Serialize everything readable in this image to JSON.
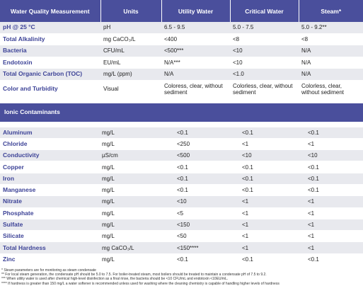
{
  "header": {
    "col0": "Water Quality Measurement",
    "col1": "Units",
    "col2": "Utility Water",
    "col3": "Critical Water",
    "col4": "Steam*"
  },
  "rows": [
    {
      "name": "pH @ 25 °C",
      "unit": "pH",
      "utility": "6.5 - 9.5",
      "critical": "5.0 - 7.5",
      "steam": "5.0 - 9.2**"
    },
    {
      "name": "Total Alkalinity",
      "unit": "mg CaCO₃/L",
      "utility": "<400",
      "critical": "<8",
      "steam": "<8"
    },
    {
      "name": "Bacteria",
      "unit": "CFU/mL",
      "utility": "<500***",
      "critical": "<10",
      "steam": "N/A"
    },
    {
      "name": "Endotoxin",
      "unit": "EU/mL",
      "utility": "N/A***",
      "critical": "<10",
      "steam": "N/A"
    },
    {
      "name": "Total Organic Carbon (TOC)",
      "unit": "mg/L (ppm)",
      "utility": "N/A",
      "critical": "<1.0",
      "steam": "N/A"
    },
    {
      "name": "Color and Turbidity",
      "unit": "Visual",
      "utility": "Coloress, clear, without sediment",
      "critical": "Colorless, clear, without sediment",
      "steam": "Colorless, clear, without sediment"
    }
  ],
  "section_title": "Ionic Contaminants",
  "ionic": [
    {
      "name": "Aluminum",
      "unit": "mg/L",
      "utility": "<0.1",
      "critical": "<0.1",
      "steam": "<0.1"
    },
    {
      "name": "Chloride",
      "unit": "mg/L",
      "utility": "<250",
      "critical": "<1",
      "steam": "<1"
    },
    {
      "name": "Conductivity",
      "unit": "µS/cm",
      "utility": "<500",
      "critical": "<10",
      "steam": "<10"
    },
    {
      "name": "Copper",
      "unit": "mg/L",
      "utility": "<0.1",
      "critical": "<0.1",
      "steam": "<0.1"
    },
    {
      "name": "Iron",
      "unit": "mg/L",
      "utility": "<0.1",
      "critical": "<0.1",
      "steam": "<0.1"
    },
    {
      "name": "Manganese",
      "unit": "mg/L",
      "utility": "<0.1",
      "critical": "<0.1",
      "steam": "<0.1"
    },
    {
      "name": "Nitrate",
      "unit": "mg/L",
      "utility": "<10",
      "critical": "<1",
      "steam": "<1"
    },
    {
      "name": "Phosphate",
      "unit": "mg/L",
      "utility": "<5",
      "critical": "<1",
      "steam": "<1"
    },
    {
      "name": "Sulfate",
      "unit": "mg/L",
      "utility": "<150",
      "critical": "<1",
      "steam": "<1"
    },
    {
      "name": "Silicate",
      "unit": "mg/L",
      "utility": "<50",
      "critical": "<1",
      "steam": "<1"
    },
    {
      "name": "Total Hardness",
      "unit": "mg CaCO₃/L",
      "utility": "<150****",
      "critical": "<1",
      "steam": "<1"
    },
    {
      "name": "Zinc",
      "unit": "mg/L",
      "utility": "<0.1",
      "critical": "<0.1",
      "steam": "<0.1"
    }
  ],
  "footnotes": [
    "* Steam parameters are for monitoring as steam condensate",
    "** For local steam generation, the condensate pH should be 5.0 to 7.5. For boiler-treated steam, most boilers should be treated to maintain a condensate pH of 7.5 to 9.2.",
    "*** When utility water is used after chemical high-level disinfection as a final rinse, the bacteria should be <10 CFU/mL and endotoxin <10EU/mL.",
    "**** If hardness is greater than 150 mg/L a water softener is recommended unless used for washing where the cleaning chemistry is capable of handling higher levels of hardness"
  ]
}
